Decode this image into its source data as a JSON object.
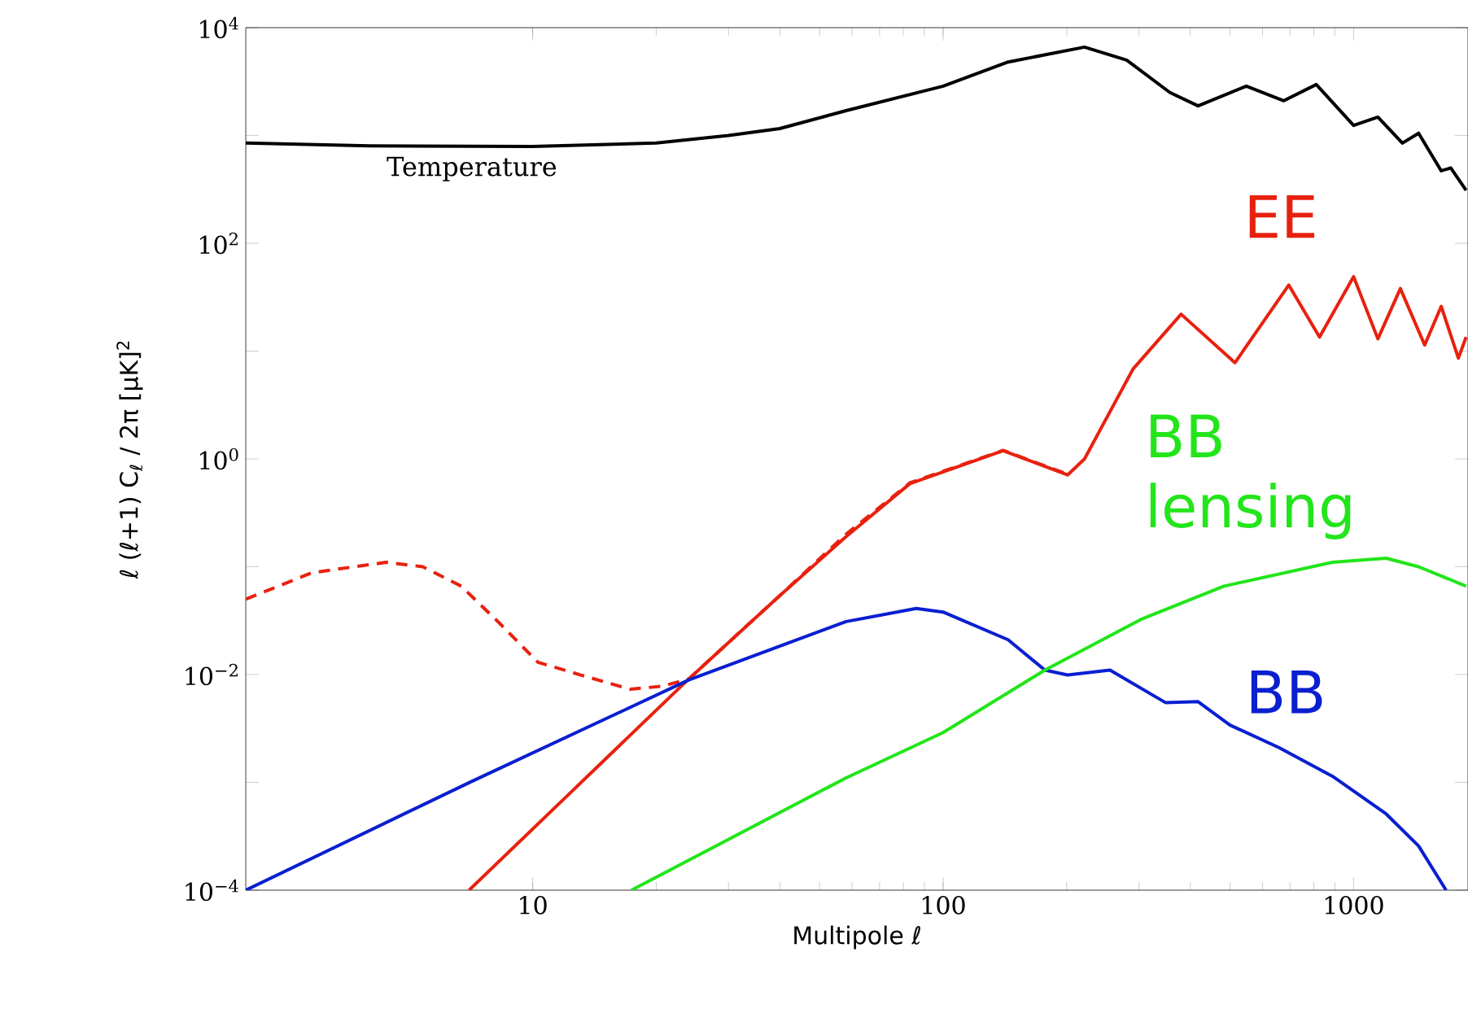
{
  "chart_data": {
    "type": "line",
    "xlabel": "Multipole  ℓ",
    "ylabel": "ℓ (ℓ+1) C$_{ℓ}$ / 2π    [μK]$^{2}$",
    "log": "xy",
    "grid": false,
    "xlim": [
      2,
      1900
    ],
    "ylim": [
      0.0001,
      10000
    ],
    "xticks": [
      10,
      100,
      1000
    ],
    "yticks": [
      {
        "value": 0.0001,
        "label": "10$^{−4}$"
      },
      {
        "value": 0.001,
        "label": null
      },
      {
        "value": 0.01,
        "label": "10$^{−2}$"
      },
      {
        "value": 0.1,
        "label": null
      },
      {
        "value": 1,
        "label": "10$^{0}$"
      },
      {
        "value": 10,
        "label": null
      },
      {
        "value": 100,
        "label": "10$^{2}$"
      },
      {
        "value": 1000,
        "label": null
      },
      {
        "value": 10000,
        "label": "10$^{4}$"
      }
    ],
    "series": [
      {
        "name": "Temperature",
        "color": "#000000",
        "line_style": "solid",
        "x": [
          2,
          4,
          10,
          20,
          30,
          40,
          58,
          100,
          144,
          221,
          280,
          357,
          418,
          548,
          676,
          811,
          1000,
          1146,
          1315,
          1440,
          1635,
          1725,
          1880
        ],
        "values": [
          850,
          800,
          790,
          850,
          1000,
          1160,
          1700,
          2870,
          4800,
          6600,
          5000,
          2500,
          1880,
          2870,
          2100,
          2970,
          1240,
          1480,
          850,
          1050,
          470,
          500,
          310
        ]
      },
      {
        "name": "EE",
        "color": "#e8210f",
        "line_style": "solid",
        "x": [
          7,
          12,
          24,
          40,
          58,
          83,
          140,
          201,
          221,
          290,
          380,
          514,
          695,
          826,
          1000,
          1146,
          1300,
          1490,
          1635,
          1800,
          1880
        ],
        "values": [
          0.0001,
          0.00072,
          0.0091,
          0.054,
          0.19,
          0.59,
          1.19,
          0.71,
          1.0,
          6.8,
          22,
          7.8,
          41,
          13.5,
          49,
          13,
          38,
          11.4,
          26,
          8.6,
          13.5
        ]
      },
      {
        "color": "#e8210f",
        "line_style": "dashed",
        "x": [
          2,
          2.9,
          4.4,
          5.4,
          6.7,
          8.3,
          10.3,
          13.1,
          17.3,
          20.7,
          24,
          40,
          58,
          83,
          140,
          201
        ],
        "values": [
          0.05,
          0.088,
          0.11,
          0.1,
          0.066,
          0.03,
          0.013,
          0.0099,
          0.0073,
          0.0078,
          0.0091,
          0.054,
          0.2,
          0.6,
          1.2,
          0.72
        ]
      },
      {
        "name": "BB",
        "color": "#0a1fd0",
        "line_style": "solid",
        "x": [
          2,
          7.1,
          24,
          58,
          86,
          100,
          144,
          177,
          201,
          255,
          348,
          418,
          500,
          658,
          888,
          1200,
          1440,
          1680
        ],
        "values": [
          0.0001,
          0.00102,
          0.0089,
          0.031,
          0.041,
          0.038,
          0.021,
          0.011,
          0.0099,
          0.011,
          0.0055,
          0.0056,
          0.0034,
          0.0021,
          0.00114,
          0.00051,
          0.000257,
          0.0001
        ]
      },
      {
        "name": "BB lensing",
        "color": "#22e51a",
        "line_style": "solid",
        "x": [
          17.4,
          58,
          100,
          177,
          306,
          483,
          888,
          1200,
          1440,
          1880
        ],
        "values": [
          0.0001,
          0.0011,
          0.0029,
          0.011,
          0.033,
          0.066,
          0.11,
          0.12,
          0.1,
          0.066
        ]
      }
    ]
  }
}
